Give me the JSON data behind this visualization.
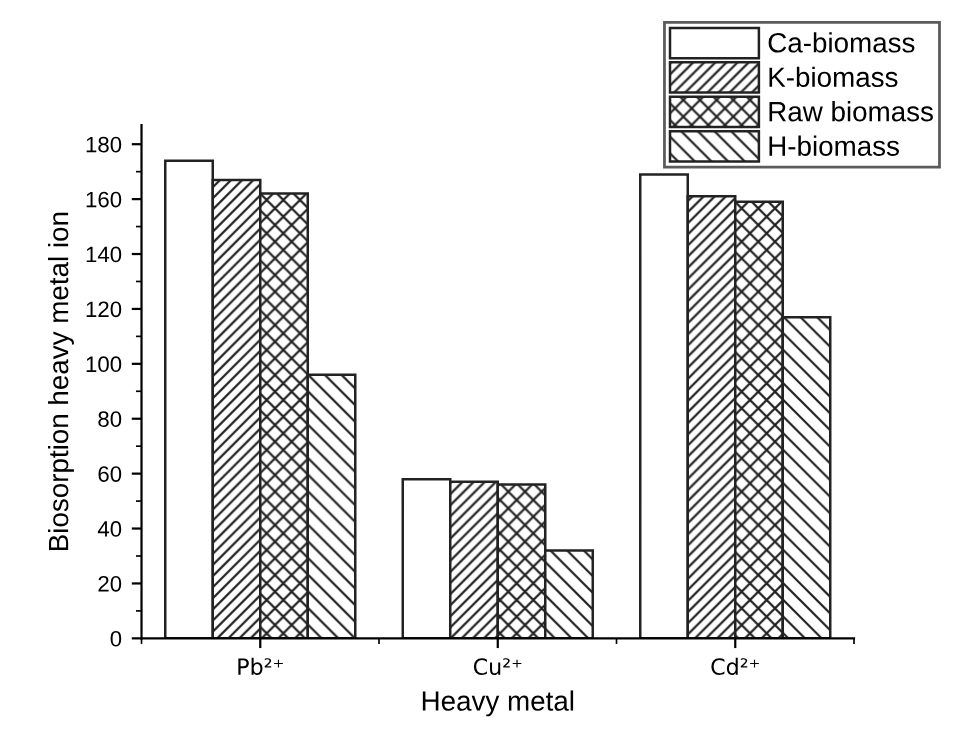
{
  "chart_data": {
    "type": "bar",
    "xlabel": "Heavy metal",
    "ylabel": "Biosorption heavy metal ion",
    "categories": [
      "Pb²⁺",
      "Cu²⁺",
      "Cd²⁺"
    ],
    "series": [
      {
        "name": "Ca-biomass",
        "color": "#ffffff",
        "values": [
          174,
          58,
          169
        ]
      },
      {
        "name": "K-biomass",
        "color": "#222222",
        "values": [
          167,
          57,
          161
        ]
      },
      {
        "name": "Raw biomass",
        "color": "#222222",
        "values": [
          162,
          56,
          159
        ]
      },
      {
        "name": "H-biomass",
        "color": "#222222",
        "values": [
          96,
          32,
          117
        ]
      }
    ],
    "ylim": [
      0,
      187
    ],
    "yticks": [
      0,
      20,
      40,
      60,
      80,
      100,
      120,
      140,
      160,
      180
    ],
    "grid": false,
    "legend": "top right"
  }
}
